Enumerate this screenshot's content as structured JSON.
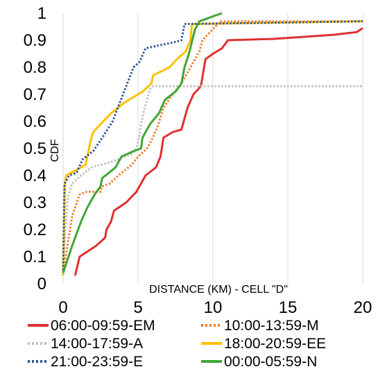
{
  "chart_data": {
    "type": "line",
    "xlabel": "DISTANCE (KM) - CELL \"D\"",
    "ylabel": "CDF",
    "xlim": [
      0,
      20
    ],
    "ylim": [
      0,
      1
    ],
    "x_ticks": [
      "0",
      "5",
      "10",
      "15",
      "20"
    ],
    "y_ticks": [
      "0",
      "0.1",
      "0.2",
      "0.3",
      "0.4",
      "0.5",
      "0.6",
      "0.7",
      "0.8",
      "0.9",
      "1"
    ],
    "grid": "vertical",
    "legend_position": "bottom",
    "series": [
      {
        "name": "06:00-09:59-EM",
        "color": "#e03030",
        "dash": "solid",
        "points": [
          [
            0.8,
            0.03
          ],
          [
            1.1,
            0.1
          ],
          [
            2.2,
            0.14
          ],
          [
            2.8,
            0.17
          ],
          [
            2.9,
            0.2
          ],
          [
            3.2,
            0.23
          ],
          [
            3.4,
            0.27
          ],
          [
            4.2,
            0.3
          ],
          [
            4.9,
            0.34
          ],
          [
            5.5,
            0.4
          ],
          [
            6.2,
            0.43
          ],
          [
            6.5,
            0.47
          ],
          [
            6.7,
            0.54
          ],
          [
            7.3,
            0.56
          ],
          [
            7.9,
            0.57
          ],
          [
            8.3,
            0.65
          ],
          [
            8.7,
            0.7
          ],
          [
            9.2,
            0.73
          ],
          [
            9.5,
            0.83
          ],
          [
            10.0,
            0.85
          ],
          [
            10.6,
            0.87
          ],
          [
            11.0,
            0.9
          ],
          [
            14.0,
            0.905
          ],
          [
            18.0,
            0.92
          ],
          [
            19.6,
            0.93
          ],
          [
            20.0,
            0.945
          ]
        ]
      },
      {
        "name": "10:00-13:59-M",
        "color": "#ed7d31",
        "dash": "dot",
        "points": [
          [
            0.0,
            0.04
          ],
          [
            0.6,
            0.25
          ],
          [
            1.1,
            0.33
          ],
          [
            1.6,
            0.34
          ],
          [
            2.5,
            0.34
          ],
          [
            2.6,
            0.36
          ],
          [
            3.1,
            0.37
          ],
          [
            3.9,
            0.41
          ],
          [
            4.6,
            0.44
          ],
          [
            5.0,
            0.47
          ],
          [
            5.6,
            0.5
          ],
          [
            5.9,
            0.53
          ],
          [
            6.3,
            0.58
          ],
          [
            6.7,
            0.65
          ],
          [
            7.3,
            0.7
          ],
          [
            7.9,
            0.74
          ],
          [
            8.5,
            0.8
          ],
          [
            9.1,
            0.86
          ],
          [
            9.3,
            0.9
          ],
          [
            9.8,
            0.93
          ],
          [
            10.5,
            0.97
          ],
          [
            20.0,
            0.97
          ]
        ]
      },
      {
        "name": "14:00-17:59-A",
        "color": "#bfbfbf",
        "dash": "dot",
        "points": [
          [
            0.0,
            0.08
          ],
          [
            0.3,
            0.32
          ],
          [
            0.6,
            0.37
          ],
          [
            1.2,
            0.4
          ],
          [
            1.9,
            0.43
          ],
          [
            3.2,
            0.45
          ],
          [
            4.6,
            0.48
          ],
          [
            4.9,
            0.5
          ],
          [
            5.1,
            0.55
          ],
          [
            5.2,
            0.59
          ],
          [
            5.4,
            0.64
          ],
          [
            5.6,
            0.68
          ],
          [
            5.8,
            0.72
          ],
          [
            6.0,
            0.73
          ],
          [
            20.0,
            0.73
          ]
        ]
      },
      {
        "name": "18:00-20:59-EE",
        "color": "#ffc000",
        "dash": "solid",
        "points": [
          [
            0.0,
            0.03
          ],
          [
            0.1,
            0.36
          ],
          [
            0.2,
            0.4
          ],
          [
            1.2,
            0.43
          ],
          [
            1.5,
            0.44
          ],
          [
            1.8,
            0.52
          ],
          [
            2.0,
            0.56
          ],
          [
            2.5,
            0.59
          ],
          [
            3.2,
            0.63
          ],
          [
            4.1,
            0.67
          ],
          [
            4.7,
            0.69
          ],
          [
            5.3,
            0.71
          ],
          [
            5.9,
            0.74
          ],
          [
            6.0,
            0.77
          ],
          [
            7.1,
            0.8
          ],
          [
            7.6,
            0.83
          ],
          [
            8.2,
            0.86
          ],
          [
            8.5,
            0.9
          ],
          [
            8.6,
            0.96
          ],
          [
            20.0,
            0.97
          ]
        ]
      },
      {
        "name": "21:00-23:59-E",
        "color": "#2f5597",
        "dash": "dot",
        "points": [
          [
            0.0,
            0.05
          ],
          [
            0.1,
            0.37
          ],
          [
            0.4,
            0.4
          ],
          [
            0.9,
            0.41
          ],
          [
            1.3,
            0.46
          ],
          [
            2.0,
            0.49
          ],
          [
            2.5,
            0.53
          ],
          [
            3.3,
            0.6
          ],
          [
            4.0,
            0.7
          ],
          [
            4.7,
            0.8
          ],
          [
            5.1,
            0.82
          ],
          [
            5.5,
            0.87
          ],
          [
            6.3,
            0.88
          ],
          [
            7.2,
            0.89
          ],
          [
            7.9,
            0.9
          ],
          [
            8.1,
            0.96
          ],
          [
            20.0,
            0.97
          ]
        ]
      },
      {
        "name": "00:00-05:59-N",
        "color": "#3fa535",
        "dash": "solid",
        "points": [
          [
            0.0,
            0.04
          ],
          [
            0.6,
            0.14
          ],
          [
            1.2,
            0.23
          ],
          [
            1.6,
            0.28
          ],
          [
            2.1,
            0.33
          ],
          [
            2.5,
            0.36
          ],
          [
            2.6,
            0.39
          ],
          [
            3.5,
            0.43
          ],
          [
            3.9,
            0.47
          ],
          [
            4.7,
            0.49
          ],
          [
            5.2,
            0.5
          ],
          [
            5.3,
            0.54
          ],
          [
            5.8,
            0.59
          ],
          [
            6.4,
            0.63
          ],
          [
            6.8,
            0.68
          ],
          [
            7.5,
            0.71
          ],
          [
            7.9,
            0.74
          ],
          [
            8.1,
            0.8
          ],
          [
            8.4,
            0.85
          ],
          [
            8.8,
            0.94
          ],
          [
            9.1,
            0.97
          ],
          [
            10.1,
            0.99
          ],
          [
            10.6,
            1.0
          ]
        ]
      }
    ]
  }
}
